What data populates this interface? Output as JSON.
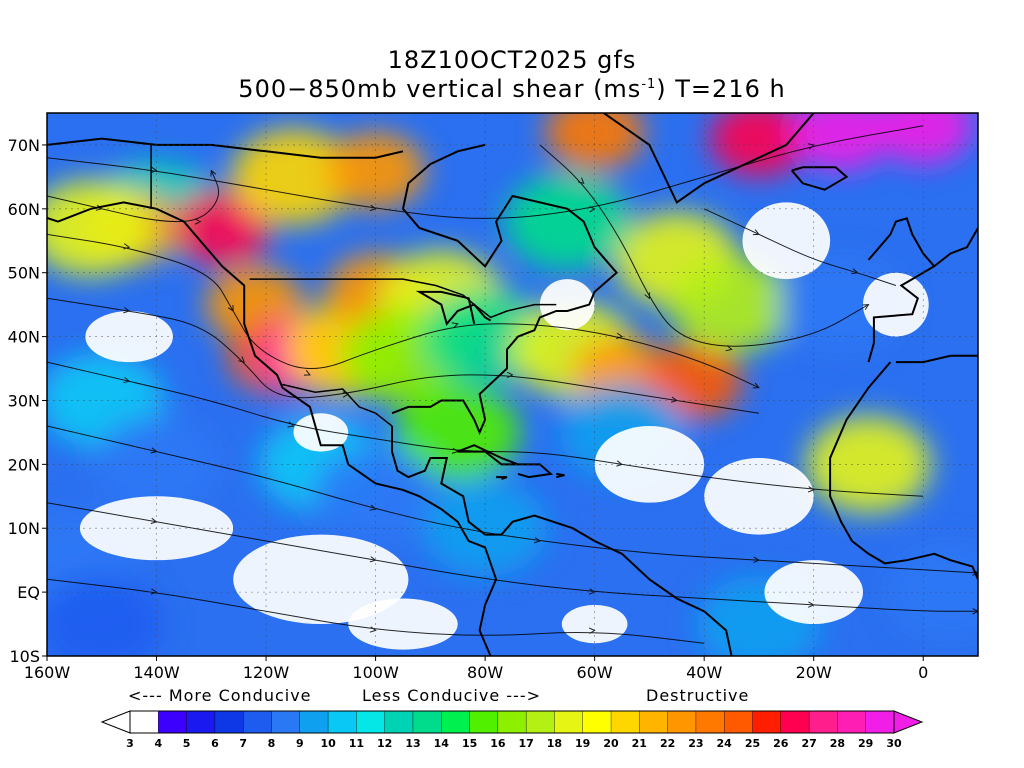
{
  "title": {
    "line1": "18Z10OCT2025 gfs",
    "line2_pre": "500−850mb vertical shear (ms",
    "line2_sup": "-1",
    "line2_post": ") T=216 h"
  },
  "map": {
    "lon_range": [
      -160,
      10
    ],
    "lat_range": [
      -10,
      75
    ],
    "lat_labels": [
      {
        "lat": 70,
        "text": "70N"
      },
      {
        "lat": 60,
        "text": "60N"
      },
      {
        "lat": 50,
        "text": "50N"
      },
      {
        "lat": 40,
        "text": "40N"
      },
      {
        "lat": 30,
        "text": "30N"
      },
      {
        "lat": 20,
        "text": "20N"
      },
      {
        "lat": 10,
        "text": "10N"
      },
      {
        "lat": 0,
        "text": "EQ"
      },
      {
        "lat": -10,
        "text": "10S"
      }
    ],
    "lon_labels": [
      {
        "lon": -160,
        "text": "160W"
      },
      {
        "lon": -140,
        "text": "140W"
      },
      {
        "lon": -120,
        "text": "120W"
      },
      {
        "lon": -100,
        "text": "100W"
      },
      {
        "lon": -80,
        "text": "80W"
      },
      {
        "lon": -60,
        "text": "60W"
      },
      {
        "lon": -40,
        "text": "40W"
      },
      {
        "lon": -20,
        "text": "20W"
      },
      {
        "lon": 0,
        "text": "0"
      }
    ]
  },
  "legend": {
    "more": "<--- More Conducive",
    "less": "Less Conducive --->",
    "destructive": "Destructive",
    "levels": [
      3,
      4,
      5,
      6,
      7,
      8,
      9,
      10,
      11,
      12,
      13,
      14,
      15,
      16,
      17,
      18,
      19,
      20,
      21,
      22,
      23,
      24,
      25,
      26,
      27,
      28,
      29,
      30
    ],
    "colors": [
      "#ffffff",
      "#3c00ff",
      "#1a1af0",
      "#0e37e6",
      "#1e5cf0",
      "#2b78f5",
      "#0fa0f0",
      "#0ac8f5",
      "#05e6e6",
      "#00d2b4",
      "#00dc8c",
      "#00f050",
      "#50f000",
      "#8cf000",
      "#b4f014",
      "#e6f514",
      "#ffff00",
      "#ffd700",
      "#ffb400",
      "#ff9600",
      "#ff7800",
      "#ff5a00",
      "#ff1e00",
      "#ff0050",
      "#ff1e8c",
      "#ff1eb4",
      "#f01ee6"
    ]
  },
  "shear_blobs": [
    {
      "lon": -140,
      "lat": 60,
      "value": 12
    },
    {
      "lon": -128,
      "lat": 57,
      "value": 26
    },
    {
      "lon": -145,
      "lat": 57,
      "value": 22
    },
    {
      "lon": -152,
      "lat": 57,
      "value": 18
    },
    {
      "lon": -115,
      "lat": 65,
      "value": 20
    },
    {
      "lon": -100,
      "lat": 66,
      "value": 22
    },
    {
      "lon": -60,
      "lat": 72,
      "value": 23
    },
    {
      "lon": -30,
      "lat": 71,
      "value": 26
    },
    {
      "lon": -15,
      "lat": 72,
      "value": 29
    },
    {
      "lon": 0,
      "lat": 73,
      "value": 30
    },
    {
      "lon": -122,
      "lat": 45,
      "value": 22
    },
    {
      "lon": -118,
      "lat": 37,
      "value": 24
    },
    {
      "lon": -112,
      "lat": 37,
      "value": 28
    },
    {
      "lon": -105,
      "lat": 38,
      "value": 20
    },
    {
      "lon": -100,
      "lat": 47,
      "value": 22
    },
    {
      "lon": -88,
      "lat": 46,
      "value": 18
    },
    {
      "lon": -95,
      "lat": 37,
      "value": 16
    },
    {
      "lon": -80,
      "lat": 40,
      "value": 13
    },
    {
      "lon": -64,
      "lat": 38,
      "value": 18
    },
    {
      "lon": -55,
      "lat": 34,
      "value": 22
    },
    {
      "lon": -42,
      "lat": 33,
      "value": 24
    },
    {
      "lon": -45,
      "lat": 52,
      "value": 18
    },
    {
      "lon": -35,
      "lat": 45,
      "value": 17
    },
    {
      "lon": -65,
      "lat": 58,
      "value": 13
    },
    {
      "lon": -85,
      "lat": 25,
      "value": 15
    },
    {
      "lon": -55,
      "lat": 25,
      "value": 9
    },
    {
      "lon": -150,
      "lat": 30,
      "value": 10
    },
    {
      "lon": -140,
      "lat": 20,
      "value": 8
    },
    {
      "lon": -110,
      "lat": 20,
      "value": 10
    },
    {
      "lon": -100,
      "lat": 15,
      "value": 8
    },
    {
      "lon": -80,
      "lat": 10,
      "value": 9
    },
    {
      "lon": -10,
      "lat": 20,
      "value": 18
    },
    {
      "lon": -15,
      "lat": 45,
      "value": 8
    },
    {
      "lon": -155,
      "lat": 5,
      "value": 8
    },
    {
      "lon": -30,
      "lat": -5,
      "value": 9
    },
    {
      "lon": 5,
      "lat": 0,
      "value": 8
    },
    {
      "lon": -150,
      "lat": -5,
      "value": 7
    }
  ],
  "calm_areas": [
    {
      "lon": -140,
      "lat": 10,
      "rx": 14,
      "ry": 5
    },
    {
      "lon": -110,
      "lat": 2,
      "rx": 16,
      "ry": 7
    },
    {
      "lon": -95,
      "lat": -5,
      "rx": 10,
      "ry": 4
    },
    {
      "lon": -145,
      "lat": 40,
      "rx": 8,
      "ry": 4
    },
    {
      "lon": -50,
      "lat": 20,
      "rx": 10,
      "ry": 6
    },
    {
      "lon": -30,
      "lat": 15,
      "rx": 10,
      "ry": 6
    },
    {
      "lon": -20,
      "lat": 0,
      "rx": 9,
      "ry": 5
    },
    {
      "lon": -25,
      "lat": 55,
      "rx": 8,
      "ry": 6
    },
    {
      "lon": -5,
      "lat": 45,
      "rx": 6,
      "ry": 5
    },
    {
      "lon": -65,
      "lat": 45,
      "rx": 5,
      "ry": 4
    },
    {
      "lon": -60,
      "lat": -5,
      "rx": 6,
      "ry": 3
    },
    {
      "lon": -110,
      "lat": 25,
      "rx": 5,
      "ry": 3
    }
  ]
}
